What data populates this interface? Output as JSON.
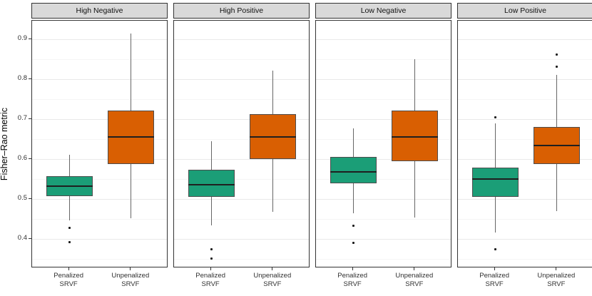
{
  "chart_data": {
    "type": "boxplot",
    "title": "",
    "ylabel": "Fisher–Rao metric",
    "xlabel": "",
    "ylim": [
      0.327,
      0.946
    ],
    "y_ticks": [
      0.4,
      0.5,
      0.6,
      0.7,
      0.8,
      0.9
    ],
    "y_minor_gridlines": [
      0.35,
      0.45,
      0.55,
      0.65,
      0.75,
      0.85
    ],
    "grid": "on",
    "legend_position": "none",
    "categories": [
      "Penalized SRVF",
      "Unpenalized SRVF"
    ],
    "category_label_lines": [
      [
        "Penalized",
        "SRVF"
      ],
      [
        "Unpenalized",
        "SRVF"
      ]
    ],
    "colors": {
      "penalized_fill": "#1b9e77",
      "unpenalized_fill": "#d95f02",
      "box_border": "#4d4d4d",
      "median": "#1f1f1f",
      "whisker": "#666666",
      "strip_fill": "#d9d9d9",
      "panel_border": "#333333",
      "major_grid": "#e9e9e9",
      "minor_grid": "#f5f5f5"
    },
    "panels": [
      {
        "label": "High Negative",
        "boxes": [
          {
            "category": "Penalized SRVF",
            "whisker_low": 0.447,
            "q1": 0.508,
            "median": 0.533,
            "q3": 0.558,
            "whisker_high": 0.611,
            "outliers": [
              0.427,
              0.393
            ]
          },
          {
            "category": "Unpenalized SRVF",
            "whisker_low": 0.451,
            "q1": 0.588,
            "median": 0.655,
            "q3": 0.722,
            "whisker_high": 0.913,
            "outliers": []
          }
        ]
      },
      {
        "label": "High Positive",
        "boxes": [
          {
            "category": "Penalized SRVF",
            "whisker_low": 0.434,
            "q1": 0.505,
            "median": 0.536,
            "q3": 0.573,
            "whisker_high": 0.645,
            "outliers": [
              0.375,
              0.351
            ]
          },
          {
            "category": "Unpenalized SRVF",
            "whisker_low": 0.468,
            "q1": 0.6,
            "median": 0.655,
            "q3": 0.713,
            "whisker_high": 0.821,
            "outliers": []
          }
        ]
      },
      {
        "label": "Low Negative",
        "boxes": [
          {
            "category": "Penalized SRVF",
            "whisker_low": 0.464,
            "q1": 0.539,
            "median": 0.567,
            "q3": 0.606,
            "whisker_high": 0.676,
            "outliers": [
              0.433,
              0.391
            ]
          },
          {
            "category": "Unpenalized SRVF",
            "whisker_low": 0.453,
            "q1": 0.594,
            "median": 0.655,
            "q3": 0.722,
            "whisker_high": 0.849,
            "outliers": []
          }
        ]
      },
      {
        "label": "Low Positive",
        "boxes": [
          {
            "category": "Penalized SRVF",
            "whisker_low": 0.417,
            "q1": 0.505,
            "median": 0.55,
            "q3": 0.578,
            "whisker_high": 0.69,
            "outliers": [
              0.705,
              0.375
            ]
          },
          {
            "category": "Unpenalized SRVF",
            "whisker_low": 0.47,
            "q1": 0.588,
            "median": 0.633,
            "q3": 0.68,
            "whisker_high": 0.811,
            "outliers": [
              0.862,
              0.831
            ]
          }
        ]
      }
    ]
  }
}
